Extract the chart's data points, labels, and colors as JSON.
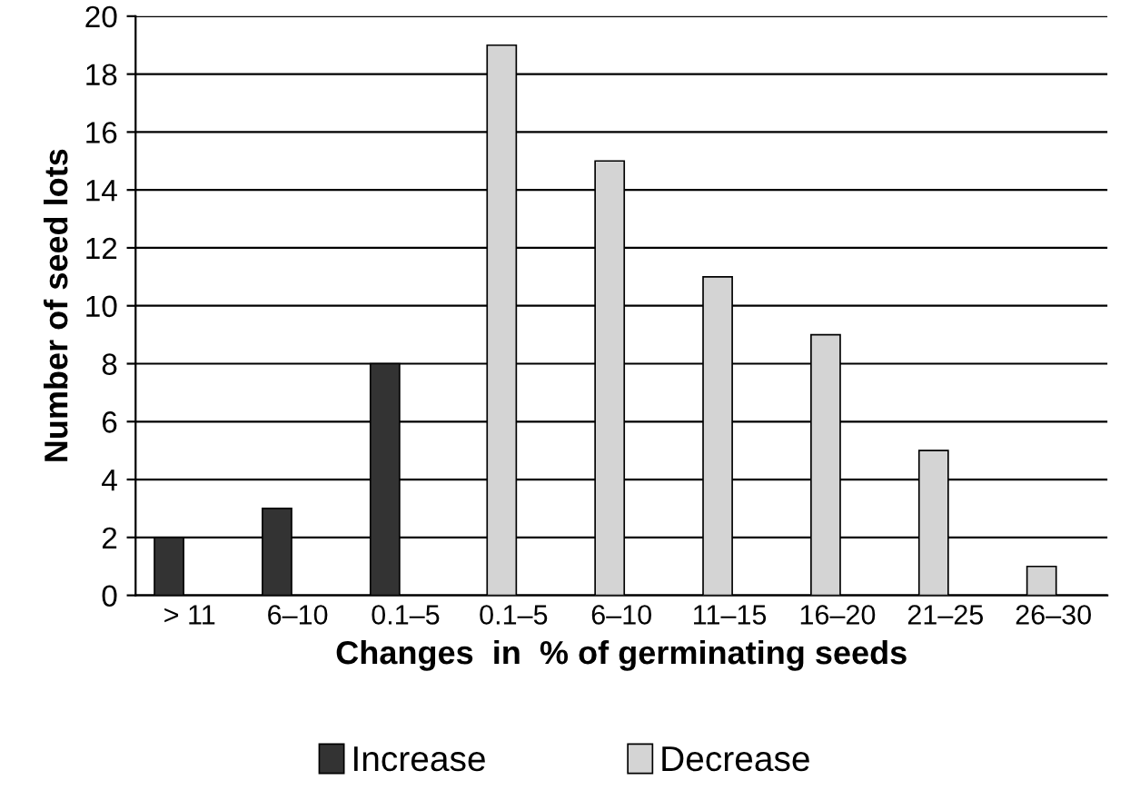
{
  "chart_data": {
    "type": "bar",
    "xlabel": "Changes  in  % of germinating seeds",
    "ylabel": "Number of seed lots",
    "categories": [
      "> 11",
      "6–10",
      "0.1–5",
      "0.1–5",
      "6–10",
      "11–15",
      "16–20",
      "21–25",
      "26–30"
    ],
    "series": [
      {
        "name": "Increase",
        "color": "#333333",
        "values": [
          2,
          3,
          8,
          null,
          null,
          null,
          null,
          null,
          null
        ]
      },
      {
        "name": "Decrease",
        "color": "#d4d4d4",
        "values": [
          null,
          null,
          null,
          19,
          15,
          11,
          9,
          5,
          1
        ]
      }
    ],
    "ylim": [
      0,
      20
    ],
    "yticks": [
      0,
      2,
      4,
      6,
      8,
      10,
      12,
      14,
      16,
      18,
      20
    ],
    "grid": "y",
    "legend": "bottom"
  }
}
